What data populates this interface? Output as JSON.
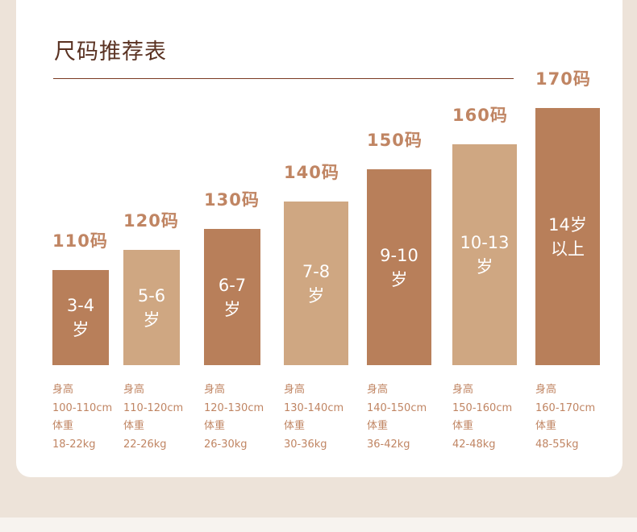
{
  "title": "尺码推荐表",
  "sizes": [
    {
      "size": "110码",
      "age": "3-4\n岁",
      "height_label": "身高",
      "height": "100-110cm",
      "weight_label": "体重",
      "weight": "18-22kg",
      "tone": "dark"
    },
    {
      "size": "120码",
      "age": "5-6\n岁",
      "height_label": "身高",
      "height": "110-120cm",
      "weight_label": "体重",
      "weight": "22-26kg",
      "tone": "light"
    },
    {
      "size": "130码",
      "age": "6-7\n岁",
      "height_label": "身高",
      "height": "120-130cm",
      "weight_label": "体重",
      "weight": "26-30kg",
      "tone": "dark"
    },
    {
      "size": "140码",
      "age": "7-8\n岁",
      "height_label": "身高",
      "height": "130-140cm",
      "weight_label": "体重",
      "weight": "30-36kg",
      "tone": "light"
    },
    {
      "size": "150码",
      "age": "9-10\n岁",
      "height_label": "身高",
      "height": "140-150cm",
      "weight_label": "体重",
      "weight": "36-42kg",
      "tone": "dark"
    },
    {
      "size": "160码",
      "age": "10-13\n岁",
      "height_label": "身高",
      "height": "150-160cm",
      "weight_label": "体重",
      "weight": "42-48kg",
      "tone": "light"
    },
    {
      "size": "170码",
      "age": "14岁\n以上",
      "height_label": "身高",
      "height": "160-170cm",
      "weight_label": "体重",
      "weight": "48-55kg",
      "tone": "dark"
    }
  ]
}
